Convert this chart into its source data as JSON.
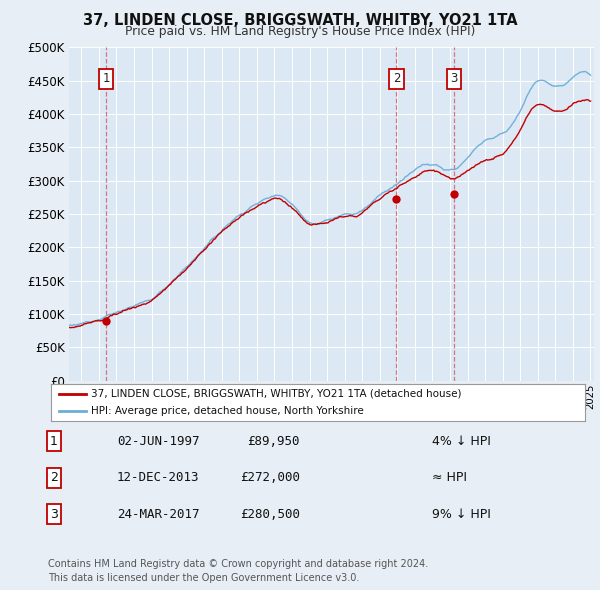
{
  "title": "37, LINDEN CLOSE, BRIGGSWATH, WHITBY, YO21 1TA",
  "subtitle": "Price paid vs. HM Land Registry's House Price Index (HPI)",
  "ylim": [
    0,
    500000
  ],
  "yticks": [
    0,
    50000,
    100000,
    150000,
    200000,
    250000,
    300000,
    350000,
    400000,
    450000,
    500000
  ],
  "xlim_start": 1995.3,
  "xlim_end": 2025.2,
  "bg_color": "#e8eef5",
  "plot_bg_color": "#dde8f5",
  "grid_color": "#ffffff",
  "sale_dates": [
    1997.42,
    2013.95,
    2017.23
  ],
  "sale_prices": [
    89950,
    272000,
    280500
  ],
  "sale_labels": [
    "1",
    "2",
    "3"
  ],
  "legend_line1": "37, LINDEN CLOSE, BRIGGSWATH, WHITBY, YO21 1TA (detached house)",
  "legend_line2": "HPI: Average price, detached house, North Yorkshire",
  "table_data": [
    [
      "1",
      "02-JUN-1997",
      "£89,950",
      "4% ↓ HPI"
    ],
    [
      "2",
      "12-DEC-2013",
      "£272,000",
      "≈ HPI"
    ],
    [
      "3",
      "24-MAR-2017",
      "£280,500",
      "9% ↓ HPI"
    ]
  ],
  "footnote": "Contains HM Land Registry data © Crown copyright and database right 2024.\nThis data is licensed under the Open Government Licence v3.0.",
  "hpi_color": "#6baed6",
  "price_color": "#c00000",
  "dashed_color": "#d06070"
}
